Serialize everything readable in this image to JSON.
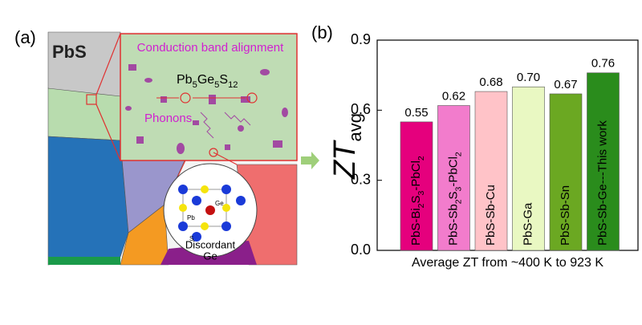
{
  "panel_a": {
    "label": "(a)",
    "material": "PbS",
    "band_text": "Conduction band alignment",
    "formula": "Pb5Ge5S12",
    "phonons": "Phonons",
    "atoms": [
      "Pb",
      "S",
      "Ge"
    ],
    "discordant": [
      "Discordant",
      "Ge"
    ]
  },
  "panel_b_label": "(b)",
  "chart_data": {
    "type": "bar",
    "ylabel": "ZT",
    "ylabel_sub": "avg",
    "xlabel": "Average ZT  from ~400 K to 923 K",
    "categories": [
      "PbS-Bi2S3-PbCl2",
      "PbS-Sb2S3-PbCl2",
      "PbS-Sb-Cu",
      "PbS-Ga",
      "PbS-Sb-Sn",
      "PbS-Sb-Ge---This work"
    ],
    "values": [
      0.55,
      0.62,
      0.68,
      0.7,
      0.67,
      0.76
    ],
    "value_labels": [
      "0.55",
      "0.62",
      "0.68",
      "0.70",
      "0.67",
      "0.76"
    ],
    "colors": [
      "#e5007d",
      "#f27ccc",
      "#ffc3c8",
      "#e9f8c2",
      "#6ba822",
      "#2a8c1c"
    ],
    "ylim": [
      0,
      0.9
    ],
    "yticks": [
      {
        "value": 0,
        "label": "0.0"
      },
      0.3,
      0.6,
      0.9
    ]
  }
}
